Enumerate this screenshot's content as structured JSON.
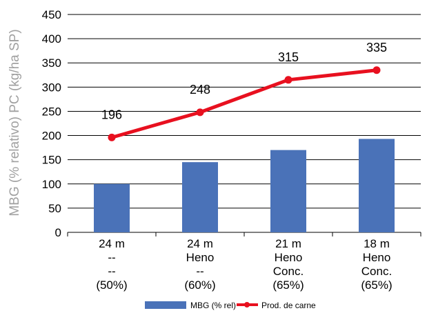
{
  "chart_data": {
    "type": "bar",
    "ylabel": "MBG (% relativo) PC (kg/ha SP)",
    "ylim": [
      0,
      450
    ],
    "yticks": [
      0,
      50,
      100,
      150,
      200,
      250,
      300,
      350,
      400,
      450
    ],
    "grid": true,
    "legend_position": "bottom",
    "categories": [
      [
        "24 m",
        "--",
        "--",
        "(50%)"
      ],
      [
        "24 m",
        "Heno",
        "--",
        "(60%)"
      ],
      [
        "21 m",
        "Heno",
        "Conc.",
        "(65%)"
      ],
      [
        "18 m",
        "Heno",
        "Conc.",
        "(65%)"
      ]
    ],
    "series": [
      {
        "name": "MBG (% rel)",
        "kind": "bar",
        "color": "#4a72b8",
        "values": [
          100,
          145,
          170,
          193
        ]
      },
      {
        "name": "Prod. de carne",
        "kind": "line",
        "color": "#e8101f",
        "values": [
          196,
          248,
          315,
          335
        ],
        "data_labels": [
          "196",
          "248",
          "315",
          "335"
        ]
      }
    ]
  }
}
